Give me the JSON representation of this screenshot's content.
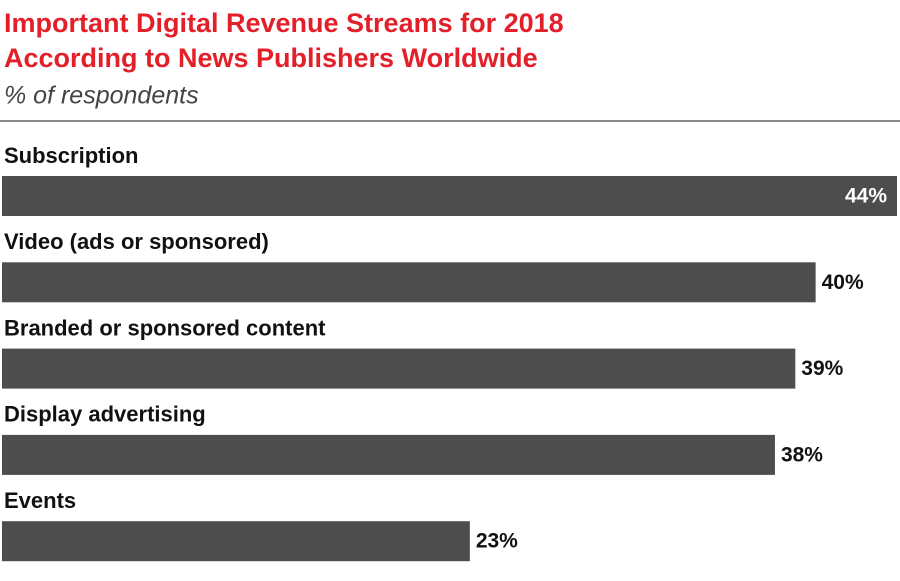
{
  "chart_data": {
    "type": "bar",
    "orientation": "horizontal",
    "title": [
      "Important Digital Revenue Streams for 2018",
      "According to News Publishers Worldwide"
    ],
    "subtitle": "% of respondents",
    "categories": [
      "Subscription",
      "Video (ads or sponsored)",
      "Branded or sponsored content",
      "Display advertising",
      "Events"
    ],
    "values": [
      44,
      40,
      39,
      38,
      23
    ],
    "value_labels": [
      "44%",
      "40%",
      "39%",
      "38%",
      "23%"
    ],
    "color": "#4d4d4d",
    "xlim": [
      0,
      44
    ]
  }
}
